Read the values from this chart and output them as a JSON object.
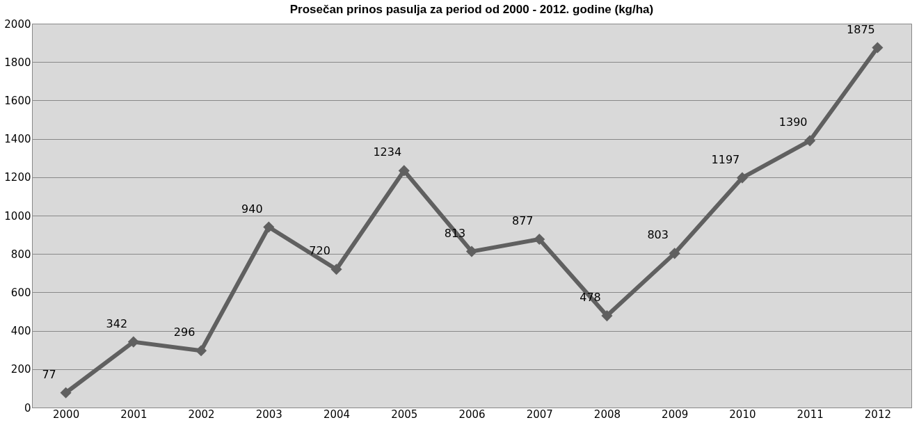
{
  "chart_data": {
    "type": "line",
    "title": "Prosečan prinos pasulja za period od 2000 - 2012. godine (kg/ha)",
    "categories": [
      "2000",
      "2001",
      "2002",
      "2003",
      "2004",
      "2005",
      "2006",
      "2007",
      "2008",
      "2009",
      "2010",
      "2011",
      "2012"
    ],
    "series": [
      {
        "color": "#606060",
        "values": [
          77,
          342,
          296,
          940,
          720,
          1234,
          813,
          877,
          478,
          803,
          1197,
          1390,
          1875
        ]
      }
    ],
    "ylim": [
      0,
      2000
    ],
    "yticks": [
      0,
      200,
      400,
      600,
      800,
      1000,
      1200,
      1400,
      1600,
      1800,
      2000
    ],
    "grid": "y",
    "marker": "diamond",
    "line_style": "solid",
    "data_labels": true
  }
}
